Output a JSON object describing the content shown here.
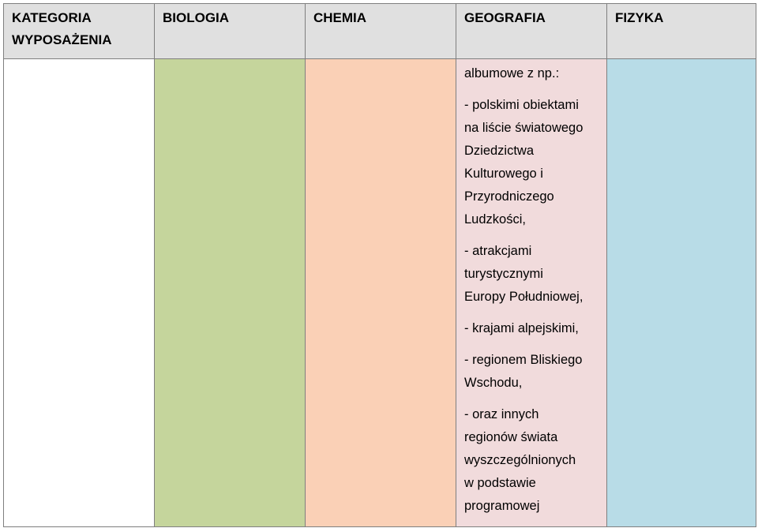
{
  "table": {
    "headers": [
      {
        "key": "cat",
        "label": "KATEGORIA\nWYPOSAŻENIA"
      },
      {
        "key": "bio",
        "label": "BIOLOGIA"
      },
      {
        "key": "chem",
        "label": "CHEMIA"
      },
      {
        "key": "geo",
        "label": "GEOGRAFIA"
      },
      {
        "key": "fiz",
        "label": "FIZYKA"
      }
    ],
    "geografia_paragraphs": [
      "albumowe z np.:",
      "- polskimi obiektami\nna liście światowego\nDziedzictwa\nKulturowego i\nPrzyrodniczego\nLudzkości,",
      "- atrakcjami\nturystycznymi\nEuropy Południowej,",
      "- krajami alpejskimi,",
      "- regionem Bliskiego\nWschodu,",
      "- oraz innych\nregionów świata\nwyszczególnionych\nw podstawie\nprogramowej"
    ]
  },
  "colors": {
    "header_bg": "#e0e0e0",
    "biologia": "#c5d59c",
    "chemia": "#fad0b6",
    "geografia": "#f1dbdc",
    "fizyka": "#b8dce7",
    "border": "#7f7f7f"
  }
}
